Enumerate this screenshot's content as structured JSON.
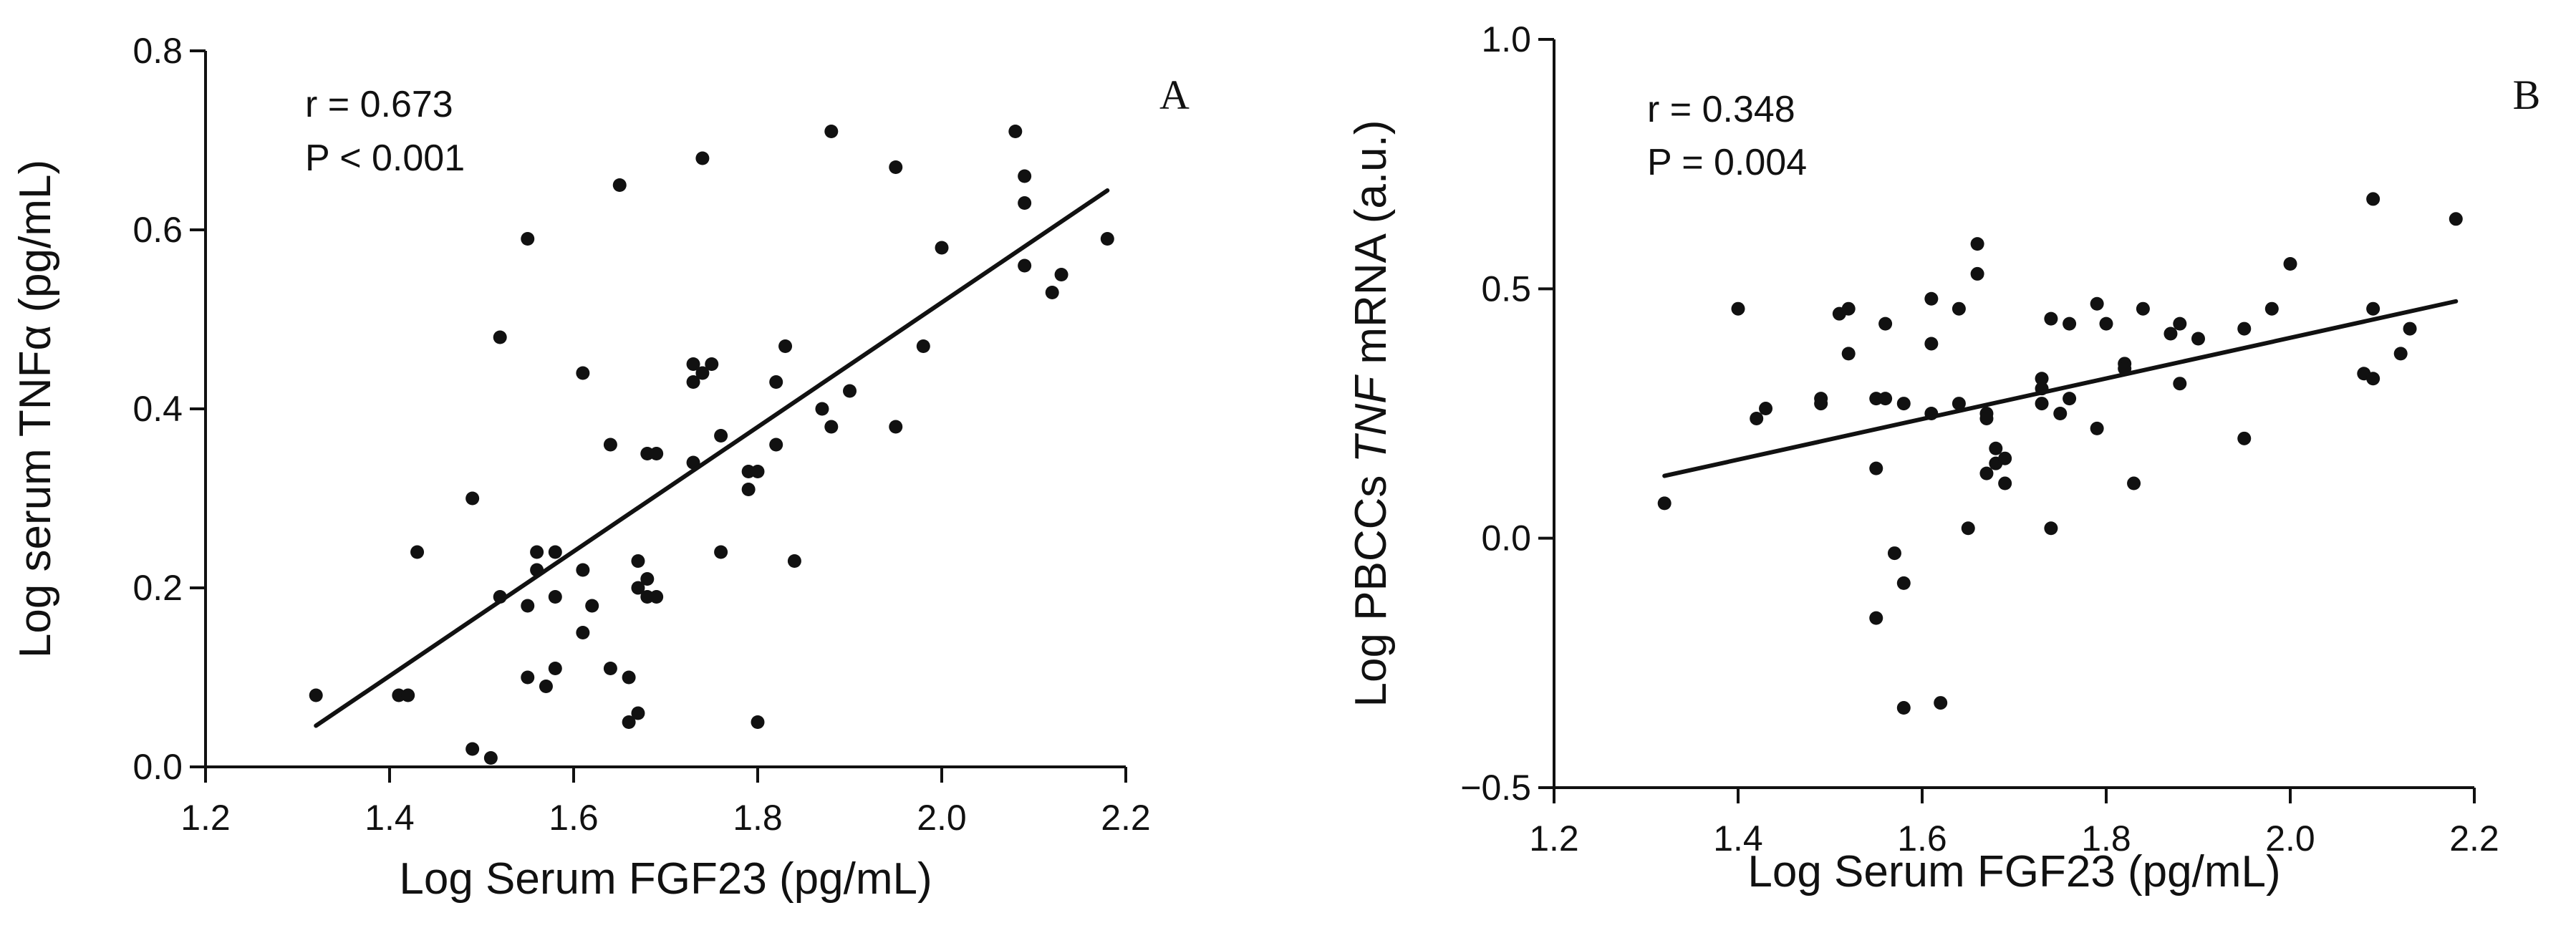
{
  "colors": {
    "ink": "#111111",
    "background": "#ffffff"
  },
  "chart_data": [
    {
      "type": "scatter",
      "panel_label": "A",
      "xlabel": "Log Serum FGF23 (pg/mL)",
      "ylabel": "Log serum TNFα (pg/mL)",
      "xlim": [
        1.2,
        2.2
      ],
      "ylim": [
        0.0,
        0.8
      ],
      "x_ticks": [
        "1.2",
        "1.4",
        "1.6",
        "1.8",
        "2.0",
        "2.2"
      ],
      "y_ticks": [
        "0.0",
        "0.2",
        "0.4",
        "0.6",
        "0.8"
      ],
      "annotation": [
        "r = 0.673",
        "P < 0.001"
      ],
      "regression": {
        "x": [
          1.32,
          2.18
        ],
        "y": [
          0.046,
          0.644
        ]
      },
      "points": [
        [
          1.32,
          0.08
        ],
        [
          1.41,
          0.08
        ],
        [
          1.42,
          0.08
        ],
        [
          1.43,
          0.24
        ],
        [
          1.49,
          0.3
        ],
        [
          1.49,
          0.02
        ],
        [
          1.51,
          0.01
        ],
        [
          1.52,
          0.19
        ],
        [
          1.52,
          0.48
        ],
        [
          1.55,
          0.59
        ],
        [
          1.55,
          0.18
        ],
        [
          1.55,
          0.1
        ],
        [
          1.56,
          0.24
        ],
        [
          1.56,
          0.22
        ],
        [
          1.57,
          0.09
        ],
        [
          1.58,
          0.24
        ],
        [
          1.58,
          0.19
        ],
        [
          1.58,
          0.11
        ],
        [
          1.61,
          0.44
        ],
        [
          1.61,
          0.22
        ],
        [
          1.61,
          0.15
        ],
        [
          1.62,
          0.18
        ],
        [
          1.64,
          0.36
        ],
        [
          1.64,
          0.11
        ],
        [
          1.65,
          0.65
        ],
        [
          1.66,
          0.1
        ],
        [
          1.66,
          0.05
        ],
        [
          1.67,
          0.23
        ],
        [
          1.67,
          0.2
        ],
        [
          1.67,
          0.06
        ],
        [
          1.68,
          0.35
        ],
        [
          1.68,
          0.21
        ],
        [
          1.68,
          0.19
        ],
        [
          1.69,
          0.35
        ],
        [
          1.69,
          0.19
        ],
        [
          1.73,
          0.45
        ],
        [
          1.73,
          0.43
        ],
        [
          1.73,
          0.34
        ],
        [
          1.74,
          0.68
        ],
        [
          1.74,
          0.44
        ],
        [
          1.75,
          0.45
        ],
        [
          1.76,
          0.37
        ],
        [
          1.76,
          0.24
        ],
        [
          1.79,
          0.33
        ],
        [
          1.79,
          0.31
        ],
        [
          1.8,
          0.33
        ],
        [
          1.8,
          0.05
        ],
        [
          1.82,
          0.43
        ],
        [
          1.82,
          0.36
        ],
        [
          1.83,
          0.47
        ],
        [
          1.84,
          0.23
        ],
        [
          1.87,
          0.4
        ],
        [
          1.88,
          0.71
        ],
        [
          1.88,
          0.38
        ],
        [
          1.9,
          0.42
        ],
        [
          1.95,
          0.67
        ],
        [
          1.95,
          0.38
        ],
        [
          1.98,
          0.47
        ],
        [
          2.0,
          0.58
        ],
        [
          2.08,
          0.71
        ],
        [
          2.09,
          0.66
        ],
        [
          2.09,
          0.63
        ],
        [
          2.09,
          0.56
        ],
        [
          2.12,
          0.53
        ],
        [
          2.13,
          0.55
        ],
        [
          2.18,
          0.59
        ]
      ]
    },
    {
      "type": "scatter",
      "panel_label": "B",
      "xlabel": "Log Serum FGF23 (pg/mL)",
      "ylabel_parts": [
        "Log PBCCs ",
        "TNF",
        " mRNA (a.u.)"
      ],
      "xlim": [
        1.2,
        2.2
      ],
      "ylim": [
        -0.5,
        1.0
      ],
      "x_ticks": [
        "1.2",
        "1.4",
        "1.6",
        "1.8",
        "2.0",
        "2.2"
      ],
      "y_ticks": [
        "−0.5",
        "0.0",
        "0.5",
        "1.0"
      ],
      "annotation": [
        "r = 0.348",
        "P = 0.004"
      ],
      "regression": {
        "x": [
          1.32,
          2.18
        ],
        "y": [
          0.125,
          0.475
        ]
      },
      "points": [
        [
          1.32,
          0.07
        ],
        [
          1.4,
          0.46
        ],
        [
          1.42,
          0.24
        ],
        [
          1.43,
          0.26
        ],
        [
          1.49,
          0.28
        ],
        [
          1.49,
          0.27
        ],
        [
          1.51,
          0.45
        ],
        [
          1.52,
          0.46
        ],
        [
          1.52,
          0.37
        ],
        [
          1.55,
          0.28
        ],
        [
          1.55,
          0.14
        ],
        [
          1.55,
          -0.16
        ],
        [
          1.56,
          0.43
        ],
        [
          1.56,
          0.28
        ],
        [
          1.57,
          -0.03
        ],
        [
          1.58,
          0.27
        ],
        [
          1.58,
          -0.09
        ],
        [
          1.58,
          -0.34
        ],
        [
          1.61,
          0.48
        ],
        [
          1.61,
          0.39
        ],
        [
          1.61,
          0.25
        ],
        [
          1.62,
          -0.33
        ],
        [
          1.64,
          0.46
        ],
        [
          1.64,
          0.27
        ],
        [
          1.65,
          0.02
        ],
        [
          1.66,
          0.59
        ],
        [
          1.66,
          0.53
        ],
        [
          1.67,
          0.25
        ],
        [
          1.67,
          0.24
        ],
        [
          1.67,
          0.13
        ],
        [
          1.68,
          0.18
        ],
        [
          1.68,
          0.15
        ],
        [
          1.69,
          0.16
        ],
        [
          1.69,
          0.11
        ],
        [
          1.73,
          0.32
        ],
        [
          1.73,
          0.3
        ],
        [
          1.73,
          0.27
        ],
        [
          1.74,
          0.44
        ],
        [
          1.74,
          0.02
        ],
        [
          1.75,
          0.25
        ],
        [
          1.76,
          0.43
        ],
        [
          1.76,
          0.28
        ],
        [
          1.79,
          0.47
        ],
        [
          1.79,
          0.22
        ],
        [
          1.8,
          0.43
        ],
        [
          1.82,
          0.35
        ],
        [
          1.82,
          0.34
        ],
        [
          1.83,
          0.11
        ],
        [
          1.84,
          0.46
        ],
        [
          1.87,
          0.41
        ],
        [
          1.88,
          0.43
        ],
        [
          1.88,
          0.31
        ],
        [
          1.9,
          0.4
        ],
        [
          1.95,
          0.42
        ],
        [
          1.95,
          0.2
        ],
        [
          1.98,
          0.46
        ],
        [
          2.0,
          0.55
        ],
        [
          2.08,
          0.33
        ],
        [
          2.09,
          0.68
        ],
        [
          2.09,
          0.46
        ],
        [
          2.09,
          0.32
        ],
        [
          2.12,
          0.37
        ],
        [
          2.13,
          0.42
        ],
        [
          2.18,
          0.64
        ]
      ]
    }
  ]
}
